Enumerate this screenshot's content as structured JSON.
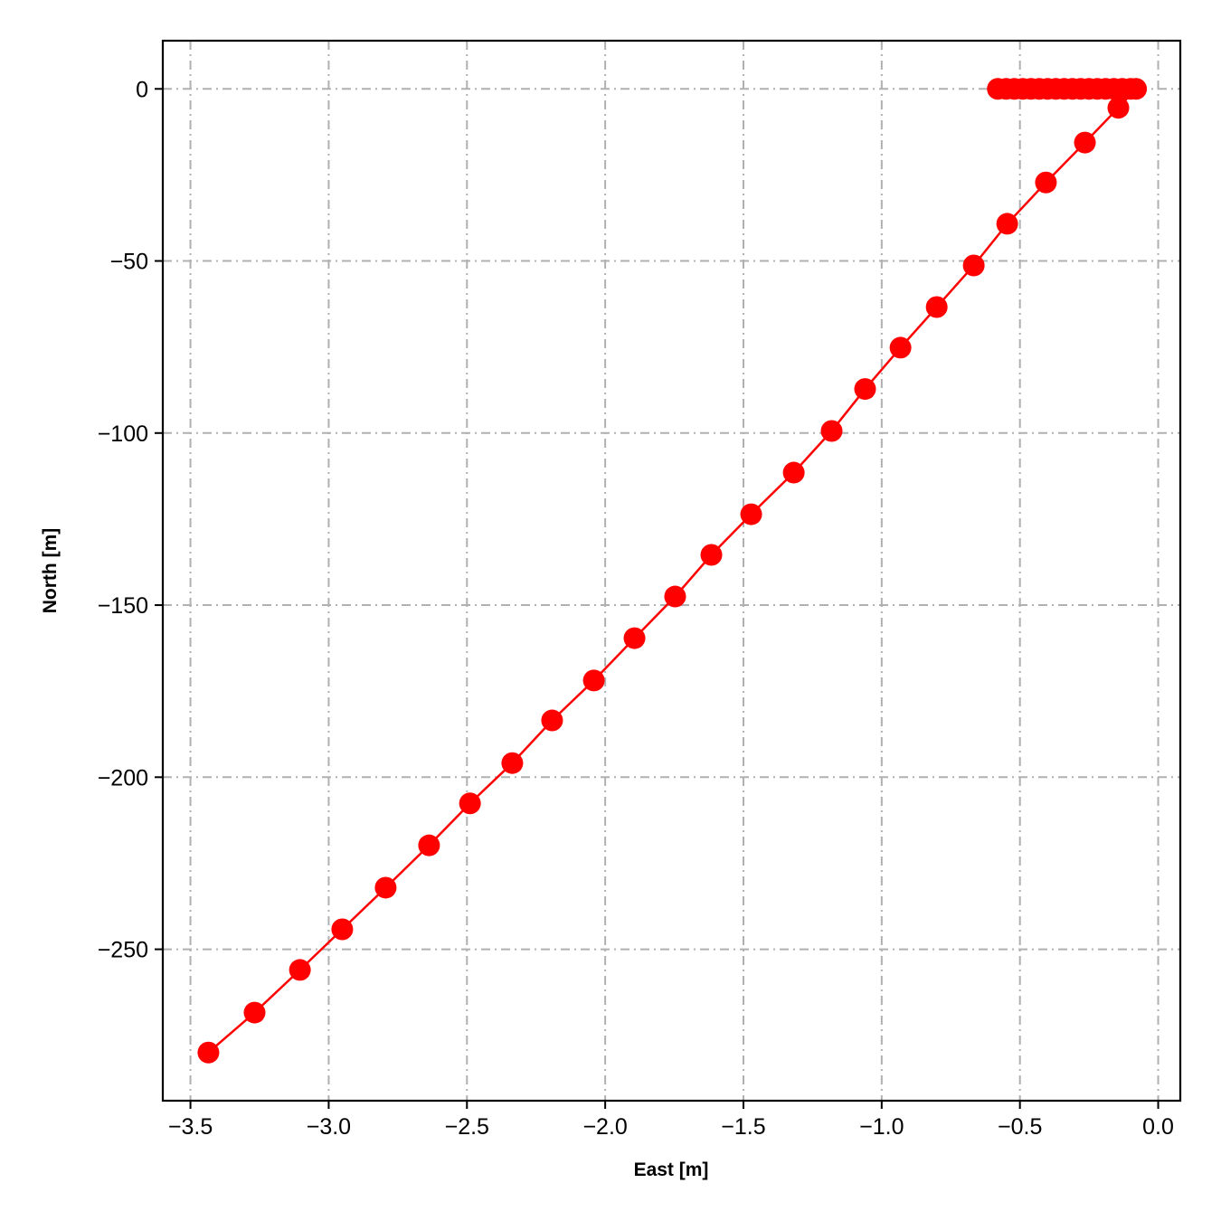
{
  "chart_data": {
    "type": "line",
    "title": "",
    "xlabel": "East [m]",
    "ylabel": "North [m]",
    "xlim": [
      -3.6,
      0.08
    ],
    "ylim": [
      -294,
      14
    ],
    "grid": true,
    "grid_style": "dash-dot",
    "xticks": [
      -3.5,
      -3.0,
      -2.5,
      -2.0,
      -1.5,
      -1.0,
      -0.5,
      0.0
    ],
    "xtick_labels": [
      "−3.5",
      "−3.0",
      "−2.5",
      "−2.0",
      "−1.5",
      "−1.0",
      "−0.5",
      "0.0"
    ],
    "yticks": [
      0,
      -50,
      -100,
      -150,
      -200,
      -250
    ],
    "ytick_labels": [
      "0",
      "−50",
      "−100",
      "−150",
      "−200",
      "−250"
    ],
    "colors": {
      "series": "#ff0000",
      "grid": "#b0b0b0"
    },
    "series": [
      {
        "marker": "circle",
        "x": [
          -0.58,
          -0.55,
          -0.52,
          -0.49,
          -0.46,
          -0.43,
          -0.4,
          -0.37,
          -0.34,
          -0.31,
          -0.28,
          -0.25,
          -0.22,
          -0.19,
          -0.16,
          -0.13,
          -0.1,
          -0.08,
          -0.144,
          -0.265,
          -0.406,
          -0.546,
          -0.667,
          -0.801,
          -0.932,
          -1.06,
          -1.181,
          -1.318,
          -1.472,
          -1.616,
          -1.747,
          -1.894,
          -2.041,
          -2.192,
          -2.336,
          -2.489,
          -2.637,
          -2.794,
          -2.951,
          -3.104,
          -3.268,
          -3.435
        ],
        "y": [
          0,
          0,
          0,
          0,
          0,
          0,
          0,
          0,
          0,
          0,
          0,
          0,
          0,
          0,
          0,
          0,
          0,
          0,
          -5.5,
          -15.6,
          -27.2,
          -39.2,
          -51.3,
          -63.4,
          -75.2,
          -87.2,
          -99.4,
          -111.5,
          -123.6,
          -135.4,
          -147.5,
          -159.6,
          -171.9,
          -183.5,
          -195.9,
          -207.6,
          -219.8,
          -232.1,
          -244.2,
          -256.0,
          -268.4,
          -280.0
        ]
      }
    ]
  }
}
